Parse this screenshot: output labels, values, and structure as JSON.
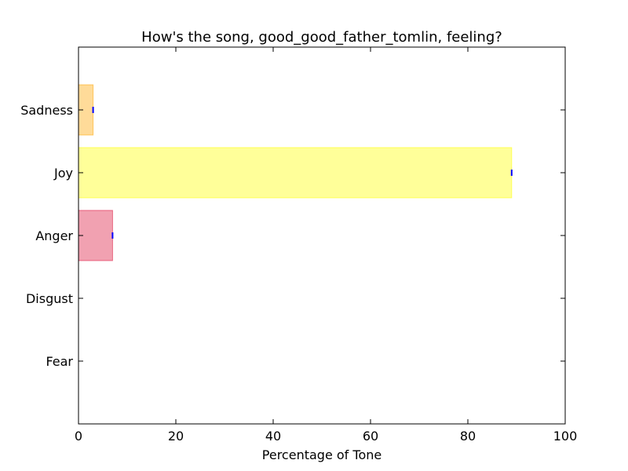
{
  "chart_data": {
    "type": "bar",
    "orientation": "horizontal",
    "title": "How's the song, good_good_father_tomlin, feeling?",
    "xlabel": "Percentage of Tone",
    "ylabel": "",
    "xlim": [
      0,
      100
    ],
    "xticks": [
      "0",
      "20",
      "40",
      "60",
      "80",
      "100"
    ],
    "categories": [
      "Fear",
      "Disgust",
      "Anger",
      "Joy",
      "Sadness"
    ],
    "values": [
      0,
      0,
      7,
      89,
      3
    ],
    "colors": [
      "#6a5acd",
      "#228b22",
      "#dc143c",
      "#ffff00",
      "#ffa500"
    ],
    "bar_opacity": 0.4,
    "error_marker_color": "#0000ff",
    "grid": false,
    "legend": "none"
  }
}
